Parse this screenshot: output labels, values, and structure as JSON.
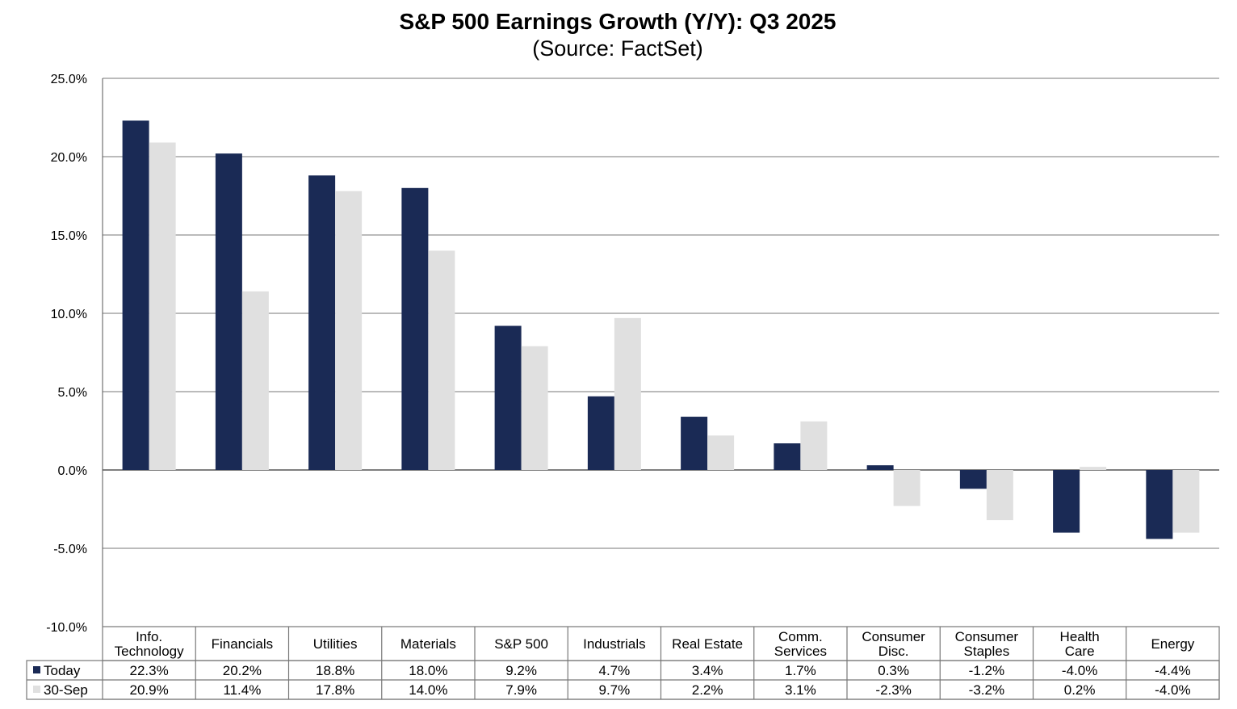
{
  "chart_data": {
    "type": "bar",
    "title": "S&P 500 Earnings Growth (Y/Y): Q3 2025",
    "subtitle": "(Source: FactSet)",
    "categories": [
      [
        "Info.",
        "Technology"
      ],
      [
        "Financials"
      ],
      [
        "Utilities"
      ],
      [
        "Materials"
      ],
      [
        "S&P 500"
      ],
      [
        "Industrials"
      ],
      [
        "Real Estate"
      ],
      [
        "Comm.",
        "Services"
      ],
      [
        "Consumer",
        "Disc."
      ],
      [
        "Consumer",
        "Staples"
      ],
      [
        "Health",
        "Care"
      ],
      [
        "Energy"
      ]
    ],
    "series": [
      {
        "name": "Today",
        "color": "#1a2a55",
        "values": [
          22.3,
          20.2,
          18.8,
          18.0,
          9.2,
          4.7,
          3.4,
          1.7,
          0.3,
          -1.2,
          -4.0,
          -4.4
        ]
      },
      {
        "name": "30-Sep",
        "color": "#e0e0e0",
        "values": [
          20.9,
          11.4,
          17.8,
          14.0,
          7.9,
          9.7,
          2.2,
          3.1,
          -2.3,
          -3.2,
          0.2,
          -4.0
        ]
      }
    ],
    "ylim": [
      -10,
      25
    ],
    "yticks": [
      25,
      20,
      15,
      10,
      5,
      0,
      -5,
      -10
    ],
    "ytick_format": "0.0%",
    "grid": true,
    "legend": "data-table"
  }
}
